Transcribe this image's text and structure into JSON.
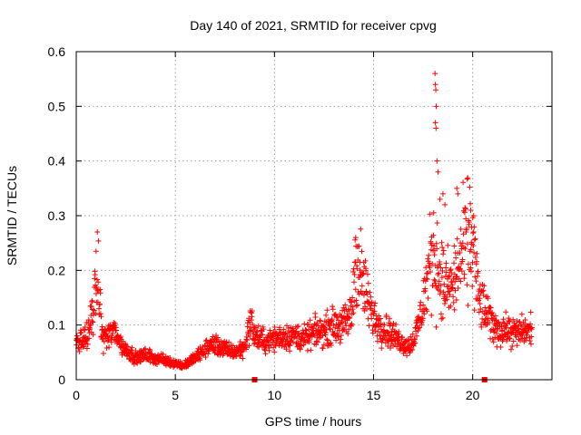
{
  "chart_data": {
    "type": "scatter",
    "title": "Day 140 of 2021, SRMTID for receiver cpvg",
    "xlabel": "GPS time / hours",
    "ylabel": "SRMTID / TECUs",
    "xlim": [
      0,
      24
    ],
    "ylim": [
      0,
      0.6
    ],
    "x_ticks": [
      0,
      5,
      10,
      15,
      20
    ],
    "y_ticks": [
      0,
      0.1,
      0.2,
      0.3,
      0.4,
      0.5,
      0.6
    ],
    "y_tick_labels": [
      "0",
      "0.1",
      "0.2",
      "0.3",
      "0.4",
      "0.5",
      "0.6"
    ],
    "grid": true,
    "marker": "+",
    "series_color": "#ff0000",
    "baseline_markers_x": [
      9.0,
      20.6
    ],
    "profile": [
      [
        0.0,
        0.07
      ],
      [
        0.3,
        0.07
      ],
      [
        0.6,
        0.08
      ],
      [
        0.9,
        0.14
      ],
      [
        1.1,
        0.19
      ],
      [
        1.3,
        0.08
      ],
      [
        1.6,
        0.08
      ],
      [
        2.0,
        0.09
      ],
      [
        2.3,
        0.06
      ],
      [
        2.7,
        0.05
      ],
      [
        3.0,
        0.04
      ],
      [
        3.5,
        0.045
      ],
      [
        4.0,
        0.04
      ],
      [
        4.5,
        0.035
      ],
      [
        5.0,
        0.03
      ],
      [
        5.4,
        0.025
      ],
      [
        5.8,
        0.035
      ],
      [
        6.2,
        0.045
      ],
      [
        6.6,
        0.06
      ],
      [
        7.0,
        0.065
      ],
      [
        7.5,
        0.055
      ],
      [
        8.0,
        0.05
      ],
      [
        8.5,
        0.06
      ],
      [
        8.8,
        0.11
      ],
      [
        9.0,
        0.08
      ],
      [
        9.5,
        0.07
      ],
      [
        10.0,
        0.075
      ],
      [
        10.5,
        0.08
      ],
      [
        11.0,
        0.08
      ],
      [
        11.5,
        0.075
      ],
      [
        12.0,
        0.085
      ],
      [
        12.5,
        0.09
      ],
      [
        13.0,
        0.1
      ],
      [
        13.5,
        0.1
      ],
      [
        13.9,
        0.12
      ],
      [
        14.1,
        0.23
      ],
      [
        14.3,
        0.2
      ],
      [
        14.6,
        0.16
      ],
      [
        14.9,
        0.12
      ],
      [
        15.3,
        0.1
      ],
      [
        15.7,
        0.09
      ],
      [
        16.0,
        0.08
      ],
      [
        16.4,
        0.07
      ],
      [
        16.8,
        0.06
      ],
      [
        17.1,
        0.08
      ],
      [
        17.4,
        0.12
      ],
      [
        17.7,
        0.18
      ],
      [
        18.0,
        0.24
      ],
      [
        18.3,
        0.2
      ],
      [
        18.6,
        0.17
      ],
      [
        19.0,
        0.17
      ],
      [
        19.4,
        0.22
      ],
      [
        19.8,
        0.26
      ],
      [
        20.0,
        0.25
      ],
      [
        20.3,
        0.15
      ],
      [
        20.7,
        0.12
      ],
      [
        21.0,
        0.1
      ],
      [
        21.4,
        0.09
      ],
      [
        21.8,
        0.09
      ],
      [
        22.2,
        0.085
      ],
      [
        22.6,
        0.09
      ],
      [
        23.0,
        0.09
      ]
    ],
    "spikes": [
      [
        18.1,
        0.56
      ],
      [
        18.12,
        0.54
      ],
      [
        18.14,
        0.53
      ],
      [
        18.16,
        0.5
      ],
      [
        18.12,
        0.47
      ],
      [
        18.15,
        0.46
      ],
      [
        18.2,
        0.4
      ],
      [
        18.25,
        0.38
      ],
      [
        18.35,
        0.33
      ],
      [
        18.5,
        0.34
      ],
      [
        18.6,
        0.32
      ],
      [
        19.2,
        0.35
      ],
      [
        19.25,
        0.34
      ],
      [
        19.9,
        0.31
      ],
      [
        20.05,
        0.3
      ],
      [
        14.1,
        0.26
      ],
      [
        1.0,
        0.235
      ]
    ]
  }
}
